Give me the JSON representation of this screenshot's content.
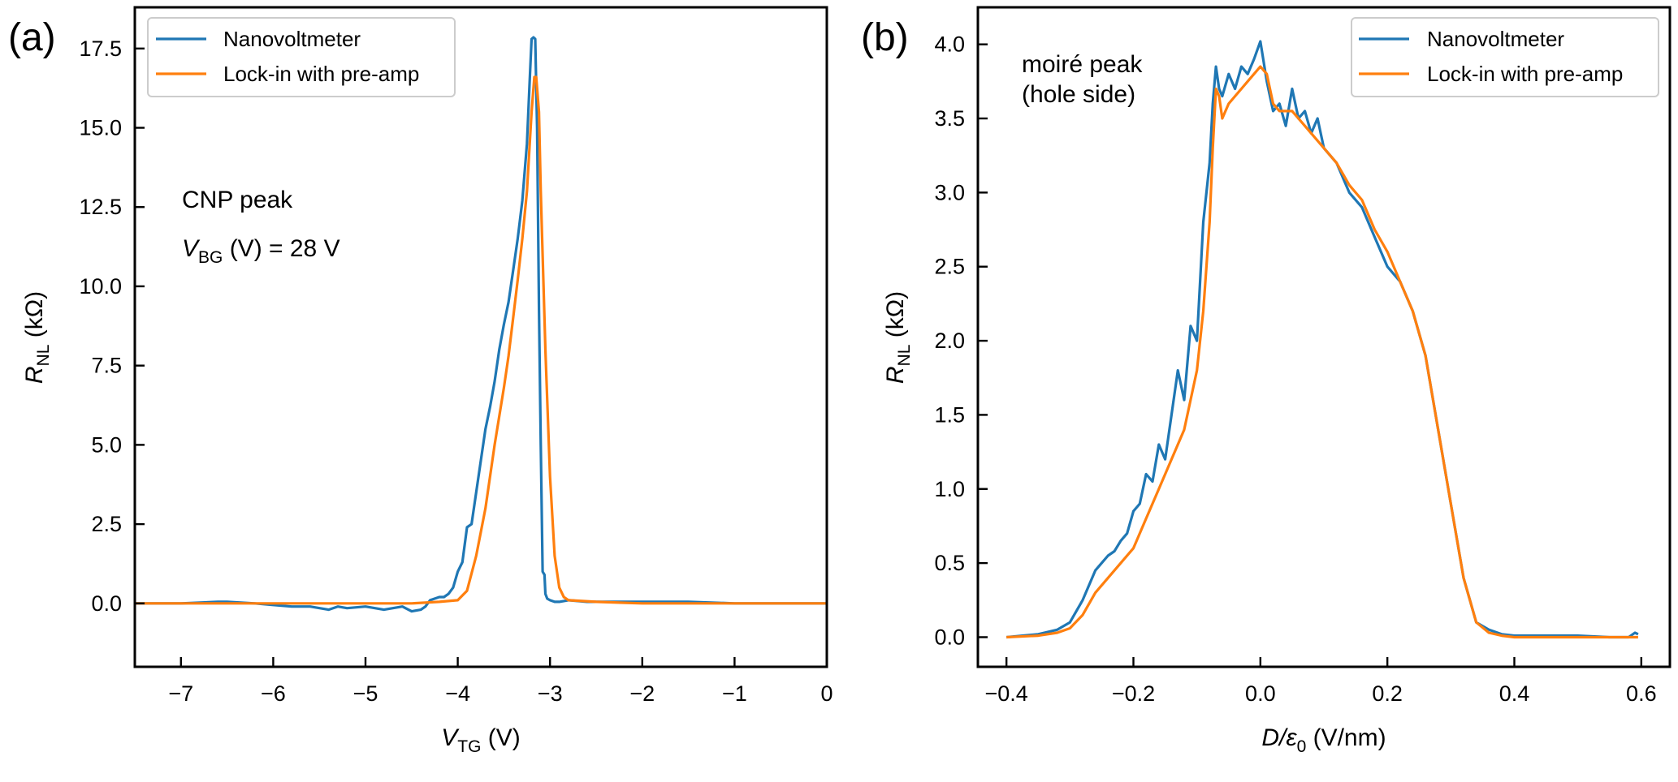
{
  "chart_data": [
    {
      "type": "line",
      "panel_label": "(a)",
      "xlabel": {
        "main": "V",
        "sub": "TG",
        "rest": " (V)"
      },
      "ylabel": {
        "main": "R",
        "sub": "NL",
        "rest": " (kΩ)"
      },
      "xlim": [
        -7.5,
        0
      ],
      "ylim": [
        -2.0,
        18.8
      ],
      "xticks": [
        -7,
        -6,
        -5,
        -4,
        -3,
        -2,
        -1,
        0
      ],
      "xtick_labels": [
        "−7",
        "−6",
        "−5",
        "−4",
        "−3",
        "−2",
        "−1",
        "0"
      ],
      "yticks": [
        0,
        2.5,
        5,
        7.5,
        10,
        12.5,
        15,
        17.5
      ],
      "ytick_labels": [
        "0.0",
        "2.5",
        "5.0",
        "7.5",
        "10.0",
        "12.5",
        "15.0",
        "17.5"
      ],
      "legend": [
        "Nanovoltmeter",
        "Lock-in with pre-amp"
      ],
      "legend_position": "upper-left",
      "annotations": {
        "line1": "CNP peak",
        "line2_main": "V",
        "line2_sub": "BG",
        "line2_rest": " (V) = 28 V"
      },
      "series": [
        {
          "name": "Nanovoltmeter",
          "color": "#1f77b4",
          "x": [
            -7.5,
            -7.0,
            -6.6,
            -6.5,
            -6.2,
            -6.0,
            -5.8,
            -5.6,
            -5.4,
            -5.3,
            -5.2,
            -5.0,
            -4.8,
            -4.6,
            -4.5,
            -4.4,
            -4.35,
            -4.3,
            -4.2,
            -4.15,
            -4.1,
            -4.05,
            -4.0,
            -3.95,
            -3.9,
            -3.85,
            -3.8,
            -3.75,
            -3.7,
            -3.65,
            -3.6,
            -3.55,
            -3.5,
            -3.45,
            -3.4,
            -3.35,
            -3.3,
            -3.25,
            -3.22,
            -3.2,
            -3.18,
            -3.16,
            -3.14,
            -3.12,
            -3.1,
            -3.08,
            -3.06,
            -3.05,
            -3.03,
            -3.0,
            -2.95,
            -2.9,
            -2.8,
            -2.6,
            -2.4,
            -2.0,
            -1.5,
            -1.0,
            -0.5,
            0.0
          ],
          "y": [
            0.0,
            0.0,
            0.05,
            0.05,
            0.0,
            -0.05,
            -0.1,
            -0.1,
            -0.2,
            -0.1,
            -0.15,
            -0.1,
            -0.2,
            -0.1,
            -0.25,
            -0.2,
            -0.1,
            0.1,
            0.2,
            0.2,
            0.3,
            0.5,
            1.0,
            1.3,
            2.4,
            2.5,
            3.5,
            4.5,
            5.5,
            6.2,
            7.0,
            8.0,
            8.8,
            9.5,
            10.5,
            11.5,
            12.7,
            14.5,
            16.5,
            17.8,
            17.85,
            17.8,
            15.0,
            9.3,
            5.0,
            1.0,
            0.9,
            0.3,
            0.15,
            0.1,
            0.05,
            0.05,
            0.1,
            0.05,
            0.05,
            0.05,
            0.05,
            0.0,
            0.0,
            0.0
          ]
        },
        {
          "name": "Lock-in with pre-amp",
          "color": "#ff7f0e",
          "x": [
            -7.5,
            -6.5,
            -5.5,
            -4.5,
            -4.2,
            -4.0,
            -3.9,
            -3.8,
            -3.7,
            -3.6,
            -3.5,
            -3.45,
            -3.4,
            -3.35,
            -3.3,
            -3.25,
            -3.2,
            -3.17,
            -3.15,
            -3.12,
            -3.1,
            -3.05,
            -3.0,
            -2.95,
            -2.9,
            -2.85,
            -2.8,
            -2.5,
            -2.0,
            -1.0,
            0.0
          ],
          "y": [
            0.0,
            0.0,
            0.0,
            0.0,
            0.05,
            0.1,
            0.4,
            1.5,
            3.0,
            5.0,
            6.8,
            7.8,
            9.0,
            10.2,
            11.5,
            13.0,
            15.5,
            16.6,
            16.6,
            15.5,
            13.0,
            8.0,
            4.0,
            1.5,
            0.5,
            0.2,
            0.1,
            0.05,
            0.0,
            0.0,
            0.0
          ]
        }
      ]
    },
    {
      "type": "line",
      "panel_label": "(b)",
      "xlabel": {
        "main": "D/ε",
        "sub": "0",
        "rest": " (V/nm)"
      },
      "ylabel": {
        "main": "R",
        "sub": "NL",
        "rest": " (kΩ)"
      },
      "xlim": [
        -0.445,
        0.645
      ],
      "ylim": [
        -0.2,
        4.25
      ],
      "xticks": [
        -0.4,
        -0.2,
        0.0,
        0.2,
        0.4,
        0.6
      ],
      "xtick_labels": [
        "−0.4",
        "−0.2",
        "0.0",
        "0.2",
        "0.4",
        "0.6"
      ],
      "yticks": [
        0,
        0.5,
        1.0,
        1.5,
        2.0,
        2.5,
        3.0,
        3.5,
        4.0
      ],
      "ytick_labels": [
        "0.0",
        "0.5",
        "1.0",
        "1.5",
        "2.0",
        "2.5",
        "3.0",
        "3.5",
        "4.0"
      ],
      "legend": [
        "Nanovoltmeter",
        "Lock-in with pre-amp"
      ],
      "legend_position": "upper-right",
      "annotations": {
        "line1": "moiré peak",
        "line2": "(hole side)"
      },
      "series": [
        {
          "name": "Nanovoltmeter",
          "color": "#1f77b4",
          "x": [
            -0.4,
            -0.35,
            -0.32,
            -0.3,
            -0.28,
            -0.26,
            -0.25,
            -0.24,
            -0.23,
            -0.22,
            -0.21,
            -0.2,
            -0.19,
            -0.18,
            -0.17,
            -0.16,
            -0.15,
            -0.14,
            -0.13,
            -0.12,
            -0.11,
            -0.1,
            -0.09,
            -0.08,
            -0.075,
            -0.07,
            -0.065,
            -0.06,
            -0.05,
            -0.04,
            -0.03,
            -0.02,
            -0.01,
            0.0,
            0.01,
            0.02,
            0.03,
            0.04,
            0.05,
            0.06,
            0.07,
            0.08,
            0.09,
            0.1,
            0.12,
            0.14,
            0.16,
            0.18,
            0.2,
            0.22,
            0.24,
            0.26,
            0.28,
            0.3,
            0.32,
            0.34,
            0.36,
            0.38,
            0.4,
            0.45,
            0.5,
            0.55,
            0.58,
            0.59,
            0.595
          ],
          "y": [
            0.0,
            0.02,
            0.05,
            0.1,
            0.25,
            0.45,
            0.5,
            0.55,
            0.58,
            0.65,
            0.7,
            0.85,
            0.9,
            1.1,
            1.05,
            1.3,
            1.2,
            1.5,
            1.8,
            1.6,
            2.1,
            2.0,
            2.8,
            3.2,
            3.6,
            3.85,
            3.7,
            3.65,
            3.8,
            3.7,
            3.85,
            3.8,
            3.9,
            4.02,
            3.75,
            3.55,
            3.6,
            3.45,
            3.7,
            3.5,
            3.55,
            3.4,
            3.5,
            3.3,
            3.2,
            3.0,
            2.9,
            2.7,
            2.5,
            2.4,
            2.2,
            1.9,
            1.4,
            0.9,
            0.4,
            0.1,
            0.05,
            0.02,
            0.01,
            0.01,
            0.01,
            0.0,
            0.0,
            0.03,
            0.02
          ]
        },
        {
          "name": "Lock-in with pre-amp",
          "color": "#ff7f0e",
          "x": [
            -0.4,
            -0.35,
            -0.32,
            -0.3,
            -0.28,
            -0.26,
            -0.24,
            -0.22,
            -0.2,
            -0.18,
            -0.16,
            -0.14,
            -0.12,
            -0.1,
            -0.09,
            -0.08,
            -0.075,
            -0.07,
            -0.065,
            -0.06,
            -0.05,
            -0.04,
            -0.03,
            -0.02,
            -0.01,
            0.0,
            0.01,
            0.02,
            0.03,
            0.05,
            0.07,
            0.1,
            0.12,
            0.14,
            0.16,
            0.18,
            0.2,
            0.22,
            0.24,
            0.26,
            0.28,
            0.3,
            0.32,
            0.34,
            0.36,
            0.38,
            0.4,
            0.5,
            0.595
          ],
          "y": [
            0.0,
            0.01,
            0.03,
            0.06,
            0.15,
            0.3,
            0.4,
            0.5,
            0.6,
            0.8,
            1.0,
            1.2,
            1.4,
            1.8,
            2.2,
            2.8,
            3.3,
            3.7,
            3.65,
            3.5,
            3.6,
            3.65,
            3.7,
            3.75,
            3.8,
            3.85,
            3.8,
            3.6,
            3.55,
            3.55,
            3.45,
            3.3,
            3.2,
            3.05,
            2.95,
            2.75,
            2.6,
            2.4,
            2.2,
            1.9,
            1.4,
            0.9,
            0.4,
            0.1,
            0.03,
            0.01,
            0.0,
            0.0,
            0.0
          ]
        }
      ]
    }
  ]
}
